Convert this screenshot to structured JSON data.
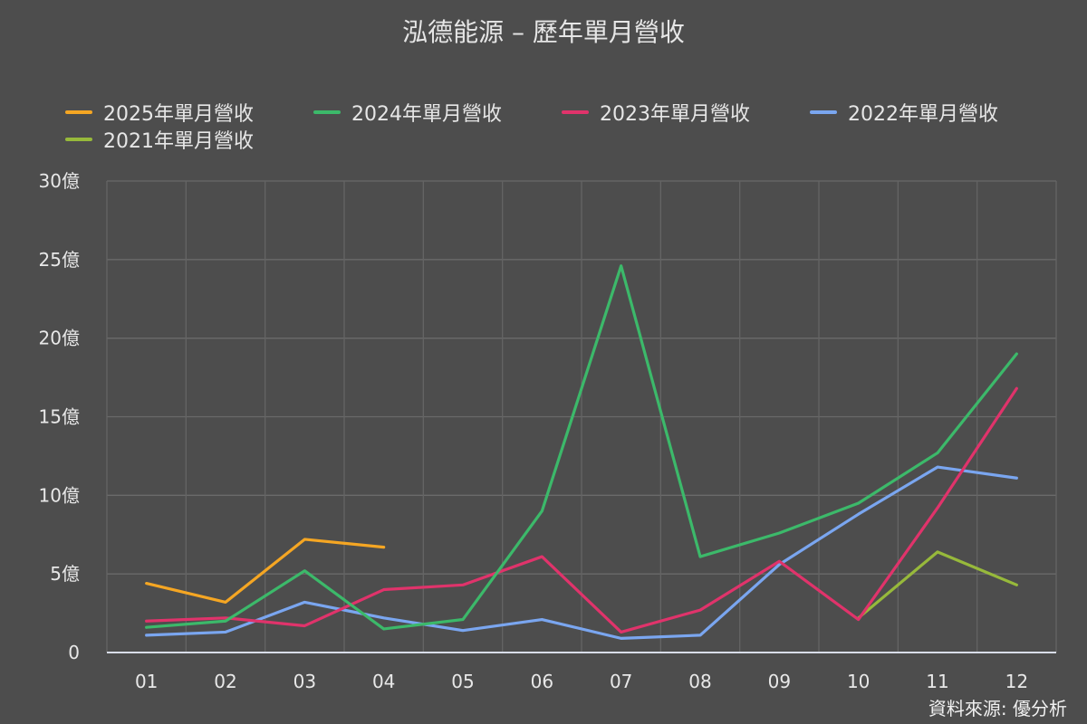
{
  "title": "泓德能源 – 歷年單月營收",
  "source": "資料來源: 優分析",
  "chart_data": {
    "type": "line",
    "title": "泓德能源 – 歷年單月營收",
    "categories": [
      "01",
      "02",
      "03",
      "04",
      "05",
      "06",
      "07",
      "08",
      "09",
      "10",
      "11",
      "12"
    ],
    "y_ticks": [
      "0",
      "5億",
      "10億",
      "15億",
      "20億",
      "25億",
      "30億"
    ],
    "ylim": [
      0,
      30
    ],
    "unit": "億",
    "grid": true,
    "legend_position": "top",
    "series": [
      {
        "name": "2025年單月營收",
        "color": "#f5a623",
        "values": [
          4.4,
          3.2,
          7.2,
          6.7,
          null,
          null,
          null,
          null,
          null,
          null,
          null,
          null
        ]
      },
      {
        "name": "2024年單月營收",
        "color": "#3cb96a",
        "values": [
          1.6,
          2.0,
          5.2,
          1.5,
          2.1,
          9.0,
          24.6,
          6.1,
          7.6,
          9.5,
          12.7,
          19.0
        ]
      },
      {
        "name": "2023年單月營收",
        "color": "#e0336b",
        "values": [
          2.0,
          2.2,
          1.7,
          4.0,
          4.3,
          6.1,
          1.3,
          2.7,
          5.8,
          2.1,
          9.2,
          16.8
        ]
      },
      {
        "name": "2022年單月營收",
        "color": "#7aa6f0",
        "values": [
          1.1,
          1.3,
          3.2,
          2.2,
          1.4,
          2.1,
          0.9,
          1.1,
          5.6,
          8.8,
          11.8,
          11.1
        ]
      },
      {
        "name": "2021年單月營收",
        "color": "#97b93b",
        "values": [
          null,
          null,
          null,
          null,
          null,
          null,
          null,
          null,
          null,
          2.2,
          6.4,
          4.3
        ]
      }
    ]
  }
}
